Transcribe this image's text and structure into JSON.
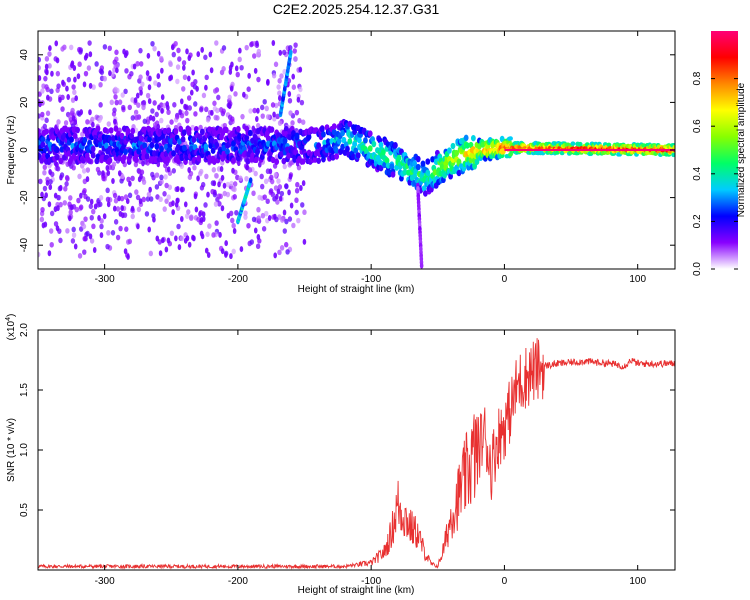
{
  "figure_title": "C2E2.2025.254.12.37.G31",
  "chart_data": [
    {
      "type": "heatmap",
      "title": "C2E2.2025.254.12.37.G31",
      "xlabel": "Height of straight line (km)",
      "ylabel": "Frequency (Hz)",
      "xlim": [
        -350,
        128
      ],
      "ylim": [
        -50,
        50
      ],
      "xticks": [
        -300,
        -200,
        -100,
        0,
        100
      ],
      "yticks": [
        -40,
        -20,
        0,
        20,
        40
      ],
      "grid": false,
      "colorbar": {
        "label": "Normalized spectral amplitude",
        "range": [
          0,
          1
        ],
        "ticks": [
          0.0,
          0.2,
          0.4,
          0.6,
          0.8
        ],
        "colormap": [
          "#ffffff",
          "#8800ff",
          "#0000ff",
          "#00ccff",
          "#00ff66",
          "#88ff00",
          "#ffff00",
          "#ff8800",
          "#ff0000",
          "#ff0077"
        ]
      },
      "features": [
        {
          "name": "noise band",
          "x_range": [
            -350,
            -150
          ],
          "center_freq": 0,
          "half_width": 45,
          "amplitude": 0.12
        },
        {
          "name": "ridge",
          "x": [
            -350,
            -140,
            -120,
            -100,
            -80,
            -60,
            -50,
            -40,
            -20,
            0,
            128
          ],
          "freq": [
            2,
            2,
            5,
            0,
            -5,
            -12,
            -8,
            -4,
            0,
            1,
            0
          ],
          "amplitude": [
            0.25,
            0.25,
            0.4,
            0.45,
            0.45,
            0.45,
            0.55,
            0.6,
            0.75,
            0.85,
            0.95
          ]
        },
        {
          "name": "streak",
          "x": [
            -200,
            -190
          ],
          "freq": [
            -30,
            -12
          ],
          "amplitude": 0.35
        },
        {
          "name": "streak",
          "x": [
            -168,
            -160
          ],
          "freq": [
            15,
            42
          ],
          "amplitude": 0.3
        },
        {
          "name": "streak",
          "x": [
            -65,
            -62
          ],
          "freq": [
            -15,
            -50
          ],
          "amplitude": 0.1
        }
      ]
    },
    {
      "type": "line",
      "xlabel": "Height of straight line (km)",
      "ylabel": "SNR (10 * v/v)",
      "multiplier": "(x10^4)",
      "xlim": [
        -350,
        128
      ],
      "ylim": [
        0,
        2.0
      ],
      "xticks": [
        -300,
        -200,
        -100,
        0,
        100
      ],
      "yticks": [
        0.5,
        1.0,
        1.5,
        2.0
      ],
      "grid": false,
      "series": [
        {
          "color": "#e83030",
          "x": [
            -350,
            -300,
            -250,
            -200,
            -150,
            -120,
            -100,
            -90,
            -85,
            -80,
            -78,
            -75,
            -70,
            -65,
            -60,
            -55,
            -50,
            -45,
            -40,
            -35,
            -30,
            -25,
            -20,
            -15,
            -10,
            -5,
            0,
            5,
            10,
            15,
            20,
            25,
            30,
            40,
            50,
            60,
            70,
            80,
            90,
            95,
            100,
            110,
            120,
            128
          ],
          "y": [
            0.03,
            0.03,
            0.03,
            0.03,
            0.03,
            0.03,
            0.06,
            0.15,
            0.3,
            0.55,
            0.5,
            0.45,
            0.35,
            0.3,
            0.15,
            0.05,
            0.03,
            0.2,
            0.45,
            0.6,
            0.75,
            0.9,
            1.0,
            1.15,
            0.85,
            1.1,
            1.2,
            1.35,
            1.55,
            1.6,
            1.65,
            1.67,
            1.7,
            1.72,
            1.73,
            1.74,
            1.73,
            1.72,
            1.7,
            1.75,
            1.72,
            1.72,
            1.72,
            1.72
          ]
        }
      ]
    }
  ]
}
